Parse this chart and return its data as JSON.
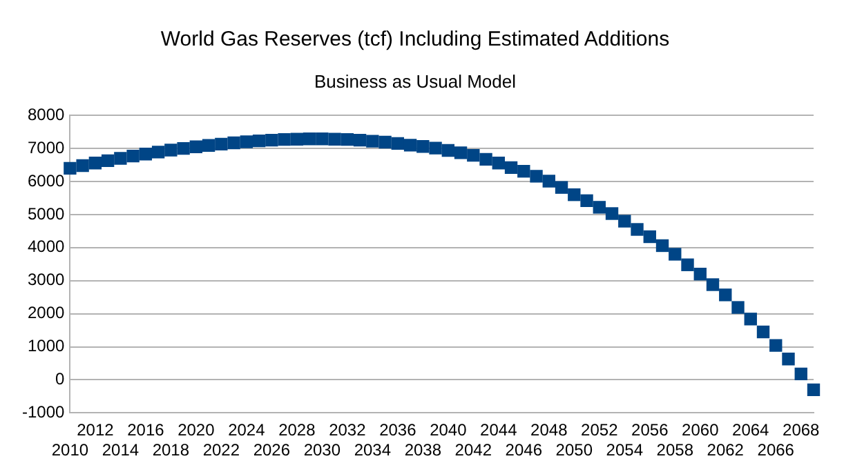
{
  "chart_data": {
    "type": "scatter",
    "title": "World Gas Reserves (tcf) Including Estimated Additions",
    "subtitle": "Business as Usual Model",
    "categories": [
      "2010",
      null,
      "2012",
      null,
      "2014",
      null,
      "2016",
      null,
      "2018",
      null,
      "2020",
      null,
      "2022",
      null,
      "2024",
      null,
      "2026",
      null,
      "2028",
      null,
      "2030",
      null,
      "2032",
      null,
      "2034",
      null,
      "2036",
      null,
      "2038",
      null,
      "2040",
      null,
      "2042",
      null,
      "2044",
      null,
      "2046",
      null,
      "2048",
      null,
      "2050",
      null,
      "2052",
      null,
      "2054",
      null,
      "2056",
      null,
      "2058",
      null,
      "2060",
      null,
      "2062",
      null,
      "2064",
      null,
      "2066",
      null,
      "2068",
      null
    ],
    "series": [
      {
        "color": "#004586",
        "values": [
          6400,
          6480,
          6560,
          6630,
          6700,
          6770,
          6830,
          6890,
          6950,
          7000,
          7050,
          7090,
          7130,
          7170,
          7200,
          7230,
          7250,
          7270,
          7280,
          7290,
          7290,
          7280,
          7270,
          7250,
          7220,
          7190,
          7150,
          7100,
          7060,
          7010,
          6940,
          6870,
          6790,
          6670,
          6560,
          6420,
          6310,
          6160,
          6010,
          5820,
          5600,
          5420,
          5220,
          5030,
          4800,
          4550,
          4330,
          4060,
          3800,
          3480,
          3200,
          2880,
          2570,
          2190,
          1840,
          1450,
          1040,
          630,
          180,
          -300
        ]
      }
    ],
    "ylim": [
      -1000,
      8000
    ],
    "yticks": [
      -1000,
      0,
      1000,
      2000,
      3000,
      4000,
      5000,
      6000,
      7000,
      8000
    ],
    "grid": "y",
    "marker": "square",
    "legend": false
  }
}
